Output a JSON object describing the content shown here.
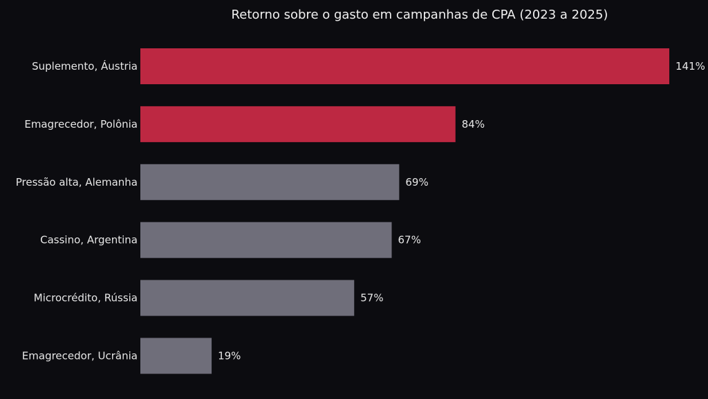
{
  "chart_data": {
    "type": "bar",
    "orientation": "horizontal",
    "title": "Retorno sobre o gasto em campanhas de CPA (2023 a 2025)",
    "xlabel": "",
    "ylabel": "",
    "categories": [
      "Suplemento, Áustria",
      "Emagrecedor, Polônia",
      "Pressão alta, Alemanha",
      "Cassino, Argentina",
      "Microcrédito, Rússia",
      "Emagrecedor, Ucrânia"
    ],
    "values": [
      141,
      84,
      69,
      67,
      57,
      19
    ],
    "value_labels": [
      "141%",
      "84%",
      "69%",
      "67%",
      "57%",
      "19%"
    ],
    "highlighted": [
      true,
      true,
      false,
      false,
      false,
      false
    ],
    "xlim": [
      0,
      148
    ],
    "grid": false,
    "legend": "none",
    "colors": {
      "background": "#0c0c10",
      "highlight": "#bd2842",
      "default": "#6f6e7a",
      "text": "#e6e6e6",
      "title": "#f0f0f0"
    }
  }
}
